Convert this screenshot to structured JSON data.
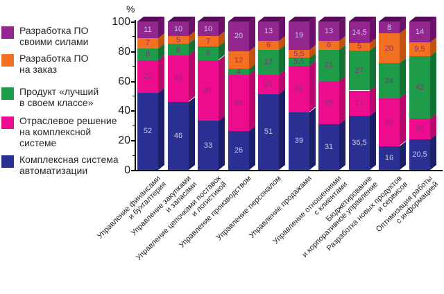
{
  "unit_label": "%",
  "colors": {
    "axis": "#000000",
    "text": "#26262e",
    "value_light": "#cac6ea",
    "value_dark": "#8a2e78",
    "top_face": "#570b59"
  },
  "legend": {
    "items": [
      {
        "label": "Разработка ПО\nсвоими силами",
        "color": "#93278f"
      },
      {
        "label": "Разработка ПО\nна заказ",
        "color": "#f36f21"
      },
      {
        "label": "Продукт «лучший\nв своем классе»",
        "color": "#1f9c49"
      },
      {
        "label": "Отраслевое решение\nна комплексной\nсистеме",
        "color": "#ee0c8e"
      },
      {
        "label": "Комплексная система\nавтоматизации",
        "color": "#2b3192"
      }
    ]
  },
  "chart_data": {
    "type": "bar",
    "stacked": true,
    "orientation": "vertical",
    "ylabel": "%",
    "ylim": [
      0,
      100
    ],
    "yticks_major": [
      0,
      20,
      40,
      60,
      80,
      100
    ],
    "yticks_minor": [
      10,
      30,
      50,
      70,
      90
    ],
    "grid": false,
    "legend_position": "left",
    "categories": [
      [
        "Управление финансами",
        "и бухгалтерия"
      ],
      [
        "Управление закупками",
        "и запасами"
      ],
      [
        "Управление цепочками поставок",
        "и логистикой"
      ],
      [
        "Управление производством"
      ],
      [
        "Управление персоналом"
      ],
      [
        "Управление продажами"
      ],
      [
        "Управление отношениями",
        "с клиентами"
      ],
      [
        "Бюджетирование",
        "и корпоративное управление"
      ],
      [
        "Разработка новых продуктов",
        "и сервисов"
      ],
      [
        "Оптимизация работы",
        "с информацией"
      ]
    ],
    "series": [
      {
        "name": "Комплексная система автоматизации",
        "color": "#2b3192",
        "side_color": "#1c2068",
        "value_color": "#cac6ea",
        "values": [
          52,
          46,
          33,
          26,
          51,
          39,
          31,
          36.5,
          16,
          20.5
        ],
        "value_labels": [
          "52",
          "46",
          "33",
          "26",
          "51",
          "39",
          "31",
          "36,5",
          "16",
          "20,5"
        ]
      },
      {
        "name": "Отраслевое решение на комплексной системе",
        "color": "#ee0c8e",
        "side_color": "#b9086c",
        "value_color": "#8a2e78",
        "values": [
          22,
          31,
          41,
          38,
          13,
          31,
          29,
          17,
          32,
          14
        ],
        "value_labels": [
          "22",
          "31",
          "41",
          "38",
          "13",
          "31",
          "29",
          "17",
          "32",
          "14"
        ]
      },
      {
        "name": "Продукт «лучший в своем классе»",
        "color": "#1f9c49",
        "side_color": "#127233",
        "value_color": "#8a2e78",
        "values": [
          8,
          8,
          9,
          4,
          17,
          5.5,
          21,
          27,
          24,
          42
        ],
        "value_labels": [
          "8",
          "8",
          "9",
          "4",
          "17",
          "5,5",
          "21",
          "27",
          "24",
          "42"
        ]
      },
      {
        "name": "Разработка ПО на заказ",
        "color": "#f36f21",
        "side_color": "#c05212",
        "value_color": "#8a2e78",
        "values": [
          7,
          5,
          7,
          12,
          6,
          5.5,
          6,
          5,
          20,
          9.5
        ],
        "value_labels": [
          "7",
          "5",
          "7",
          "12",
          "6",
          "5,5",
          "6",
          "5",
          "20",
          "9,5"
        ]
      },
      {
        "name": "Разработка ПО своими силами",
        "color": "#93278f",
        "side_color": "#6c116a",
        "value_color": "#cac6ea",
        "values": [
          11,
          10,
          10,
          20,
          13,
          19,
          13,
          14.5,
          8,
          14
        ],
        "value_labels": [
          "11",
          "10",
          "10",
          "20",
          "13",
          "19",
          "13",
          "14,5",
          "8",
          "14"
        ]
      }
    ]
  }
}
